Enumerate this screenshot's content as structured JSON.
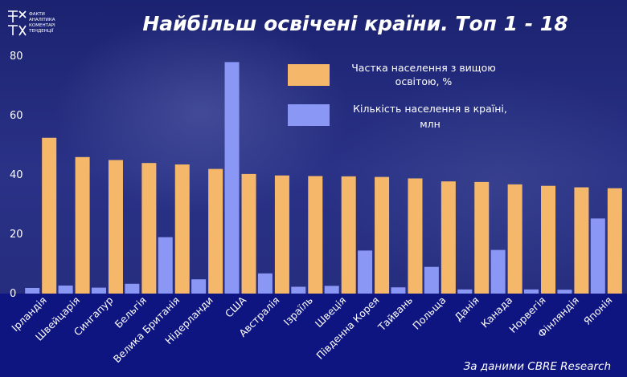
{
  "logo": {
    "lines": [
      "ФАКТИ",
      "АНАЛІТИКА",
      "КОМЕНТАРІ",
      "ТЕНДЕНЦІЇ"
    ]
  },
  "source": "За даними CBRE Research",
  "colors": {
    "background": "#1d2470",
    "bottom_band": "#0e1580",
    "series_orange": "#f5b86a",
    "series_blue": "#8b97f5",
    "text": "#ffffff"
  },
  "chart_data": {
    "type": "bar",
    "title": "Найбільш освічені країни. Топ 1 - 18",
    "categories": [
      "Ірландія",
      "Швейцарія",
      "Сингапур",
      "Бельгія",
      "Велика Британія",
      "Нідерланди",
      "США",
      "Австралія",
      "Ізраїль",
      "Швеція",
      "Південна Корея",
      "Тайвань",
      "Польща",
      "Данія",
      "Канада",
      "Норвегія",
      "Фінляндія",
      "Японія"
    ],
    "series": [
      {
        "name": "Частка населення з вищою освітою, %",
        "color": "#f5b86a",
        "values": [
          52.5,
          46,
          45,
          44,
          43.5,
          42,
          40.3,
          39.8,
          39.6,
          39.5,
          39.3,
          38.8,
          37.8,
          37.6,
          36.8,
          36.3,
          35.8,
          35.5
        ]
      },
      {
        "name": "Кількість населення в країні, млн",
        "color": "#8b97f5",
        "values": [
          1.9,
          2.7,
          2.0,
          3.3,
          19,
          4.8,
          78,
          6.8,
          2.3,
          2.6,
          14.5,
          2.1,
          9,
          1.4,
          14.7,
          1.4,
          1.3,
          25.3
        ]
      }
    ],
    "yticks": [
      0,
      20,
      40,
      60,
      80
    ],
    "ylim": [
      0,
      80
    ],
    "grid": false,
    "legend_position": "top-center"
  }
}
